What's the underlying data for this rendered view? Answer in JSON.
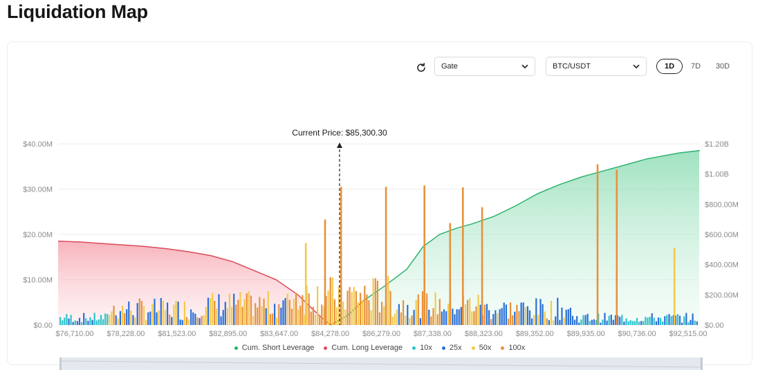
{
  "page": {
    "title": "Liquidation Map"
  },
  "toolbar": {
    "refresh_icon": "refresh-icon",
    "exchange": {
      "value": "Gate",
      "icon": "chevron-down-icon"
    },
    "pair": {
      "value": "BTC/USDT",
      "icon": "chevron-down-icon"
    },
    "ranges": [
      {
        "label": "1D",
        "active": true
      },
      {
        "label": "7D",
        "active": false
      },
      {
        "label": "30D",
        "active": false
      }
    ]
  },
  "chart_data": {
    "type": "bar",
    "annotation": "Current Price: $85,300.30",
    "current_price": 85300.3,
    "x_tick_labels": [
      "$76,710.00",
      "$78,228.00",
      "$81,523.00",
      "$82,895.00",
      "$83,647.00",
      "$84,278.00",
      "$86,279.00",
      "$87,338.00",
      "$88,323.00",
      "$89,352.00",
      "$89,935.00",
      "$90,736.00",
      "$92,515.00"
    ],
    "y_left": {
      "ticks": [
        "$0.00",
        "$10.00M",
        "$20.00M",
        "$30.00M",
        "$40.00M"
      ],
      "range": [
        0,
        40000000
      ]
    },
    "y_right": {
      "ticks": [
        "$0.00",
        "$200.00M",
        "$400.00M",
        "$600.00M",
        "$800.00M",
        "$1.00B",
        "$1.20B"
      ],
      "range": [
        0,
        1200000000
      ]
    },
    "grid": true,
    "legend_position": "bottom",
    "series": [
      {
        "name": "Cum. Short Leverage",
        "type": "area",
        "axis": "right",
        "color": "#2db16d"
      },
      {
        "name": "Cum. Long Leverage",
        "type": "area",
        "axis": "right",
        "color": "#e04a5a"
      },
      {
        "name": "10x",
        "type": "bar",
        "axis": "left",
        "color": "#2ac3c9"
      },
      {
        "name": "25x",
        "type": "bar",
        "axis": "left",
        "color": "#2a6fd6"
      },
      {
        "name": "50x",
        "type": "bar",
        "axis": "left",
        "color": "#f2c94c"
      },
      {
        "name": "100x",
        "type": "bar",
        "axis": "left",
        "color": "#e8913a"
      }
    ],
    "long_cum_points": [
      [
        0,
        0.555
      ],
      [
        0.04,
        0.55
      ],
      [
        0.08,
        0.54
      ],
      [
        0.12,
        0.53
      ],
      [
        0.16,
        0.52
      ],
      [
        0.2,
        0.505
      ],
      [
        0.24,
        0.485
      ],
      [
        0.28,
        0.46
      ],
      [
        0.32,
        0.42
      ],
      [
        0.36,
        0.36
      ],
      [
        0.4,
        0.3
      ],
      [
        0.44,
        0.2
      ],
      [
        0.46,
        0.13
      ],
      [
        0.48,
        0.06
      ],
      [
        0.5,
        0
      ]
    ],
    "short_cum_points": [
      [
        0.5,
        0
      ],
      [
        0.53,
        0.06
      ],
      [
        0.56,
        0.16
      ],
      [
        0.6,
        0.26
      ],
      [
        0.64,
        0.37
      ],
      [
        0.67,
        0.52
      ],
      [
        0.7,
        0.6
      ],
      [
        0.73,
        0.64
      ],
      [
        0.76,
        0.67
      ],
      [
        0.8,
        0.72
      ],
      [
        0.84,
        0.79
      ],
      [
        0.88,
        0.87
      ],
      [
        0.92,
        0.93
      ],
      [
        0.96,
        0.98
      ],
      [
        1,
        1.02
      ],
      [
        1.04,
        1.06
      ],
      [
        1.08,
        1.1
      ],
      [
        1.14,
        1.14
      ],
      [
        1.18,
        1.155
      ],
      [
        1.24,
        1.16
      ]
    ],
    "notable_bars": [
      {
        "pos": 0.415,
        "value": 23300000,
        "series": "100x"
      },
      {
        "pos": 0.44,
        "value": 30500000,
        "series": "100x"
      },
      {
        "pos": 0.51,
        "value": 30500000,
        "series": "100x"
      },
      {
        "pos": 0.57,
        "value": 30800000,
        "series": "100x"
      },
      {
        "pos": 0.63,
        "value": 30400000,
        "series": "100x"
      },
      {
        "pos": 0.61,
        "value": 22500000,
        "series": "100x"
      },
      {
        "pos": 0.66,
        "value": 26000000,
        "series": "100x"
      },
      {
        "pos": 0.84,
        "value": 35500000,
        "series": "100x"
      },
      {
        "pos": 0.87,
        "value": 34300000,
        "series": "100x"
      },
      {
        "pos": 0.385,
        "value": 18100000,
        "series": "50x"
      },
      {
        "pos": 0.96,
        "value": 17000000,
        "series": "50x"
      }
    ]
  },
  "slider": {
    "label": "zoom-range-slider"
  }
}
